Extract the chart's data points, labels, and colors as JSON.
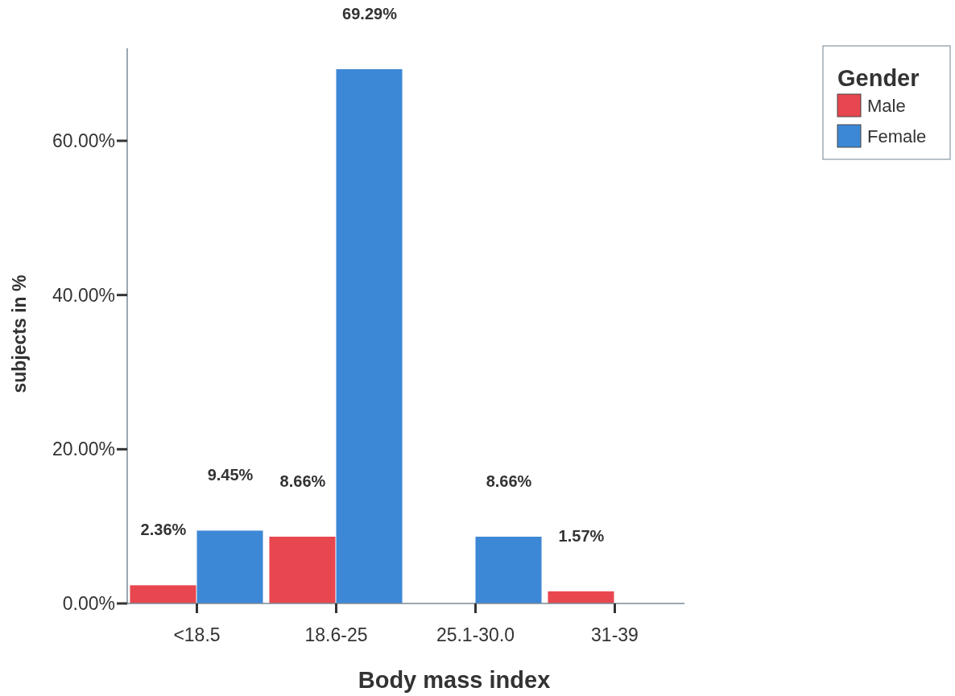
{
  "chart_data": {
    "type": "bar",
    "xlabel": "Body mass index",
    "ylabel": "subjects in %",
    "legend_title": "Gender",
    "categories": [
      "<18.5",
      "18.6-25",
      "25.1-30.0",
      "31-39"
    ],
    "series": [
      {
        "name": "Male",
        "color": "#e8474f",
        "values": [
          2.36,
          8.66,
          null,
          1.57
        ],
        "value_labels": [
          "2.36%",
          "8.66%",
          null,
          "1.57%"
        ]
      },
      {
        "name": "Female",
        "color": "#3d88d6",
        "values": [
          9.45,
          69.29,
          8.66,
          null
        ],
        "value_labels": [
          "9.45%",
          "69.29%",
          "8.66%",
          null
        ]
      }
    ],
    "ylim": [
      0,
      72
    ],
    "yticks": [
      {
        "value": 0,
        "label": "0.00%"
      },
      {
        "value": 20,
        "label": "20.00%"
      },
      {
        "value": 40,
        "label": "40.00%"
      },
      {
        "value": 60,
        "label": "60.00%"
      }
    ],
    "legend": "top right"
  }
}
